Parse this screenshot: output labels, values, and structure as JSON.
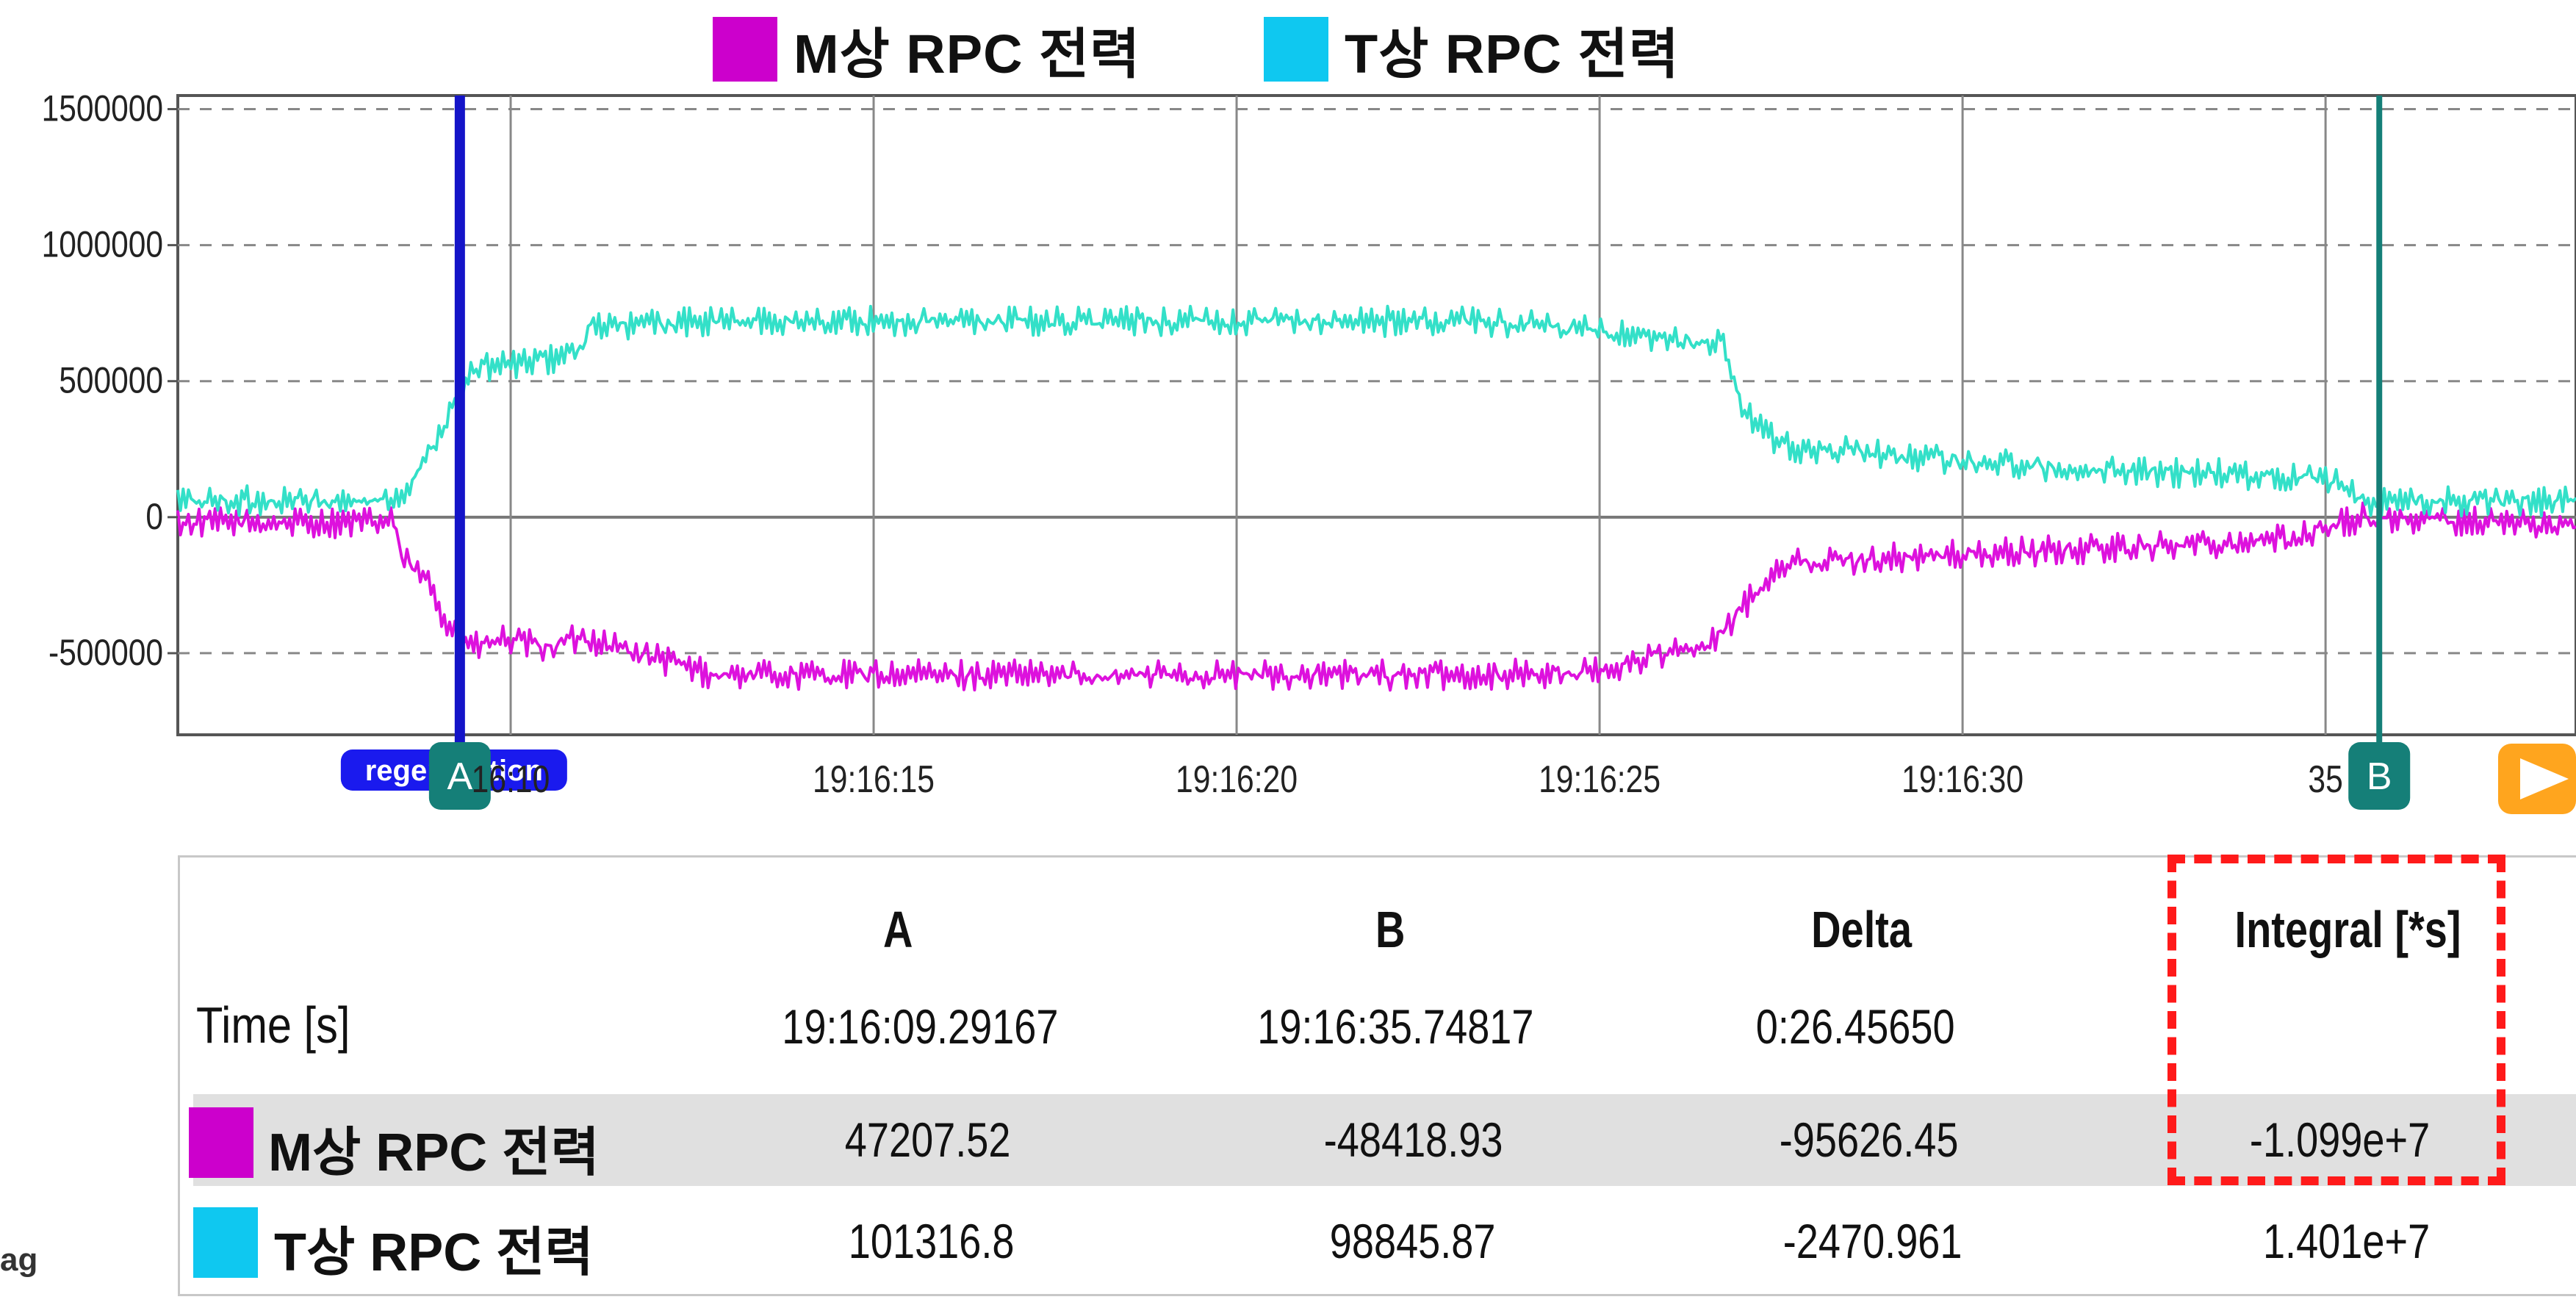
{
  "legend": [
    {
      "label": "M상 RPC 전력",
      "color": "#cc00cc"
    },
    {
      "label": "T상 RPC 전력",
      "color": "#0fc8f0"
    }
  ],
  "chart_data": {
    "type": "line",
    "title": "",
    "xlabel": "",
    "ylabel": "",
    "ylim": [
      -800000,
      1550000
    ],
    "xlim": [
      -0.085,
      32.95
    ],
    "x_unit": "seconds after 19:16:05.5",
    "x_tick_labels": [
      "16:10",
      "19:16:15",
      "19:16:20",
      "19:16:25",
      "19:16:30",
      "35"
    ],
    "x_tick_values_s": [
      4.5,
      9.5,
      14.5,
      19.5,
      24.5,
      29.5
    ],
    "y_ticks": [
      1500000,
      1000000,
      500000,
      0,
      -500000
    ],
    "y_tick_labels": [
      "1500000",
      "1000000",
      "500000",
      "0",
      "-500000"
    ],
    "grid": true,
    "series": [
      {
        "name": "M상 RPC 전력",
        "color": "#dd11dd",
        "x": [
          0,
          2.8,
          2.85,
          3,
          3.4,
          3.6,
          4.0,
          4.4,
          5.0,
          5.5,
          7.3,
          12,
          18,
          19.5,
          20.2,
          21.0,
          21.2,
          21.5,
          22,
          26,
          29,
          29.5,
          30,
          32.95
        ],
        "y": [
          -20000,
          -20000,
          20000,
          -150000,
          -250000,
          -380000,
          -480000,
          -450000,
          -480000,
          -440000,
          -580000,
          -580000,
          -580000,
          -570000,
          -510000,
          -480000,
          -420000,
          -320000,
          -170000,
          -120000,
          -80000,
          -40000,
          0,
          -30000
        ]
      },
      {
        "name": "T상 RPC 전력",
        "color": "#33e0c8",
        "x": [
          0,
          2.8,
          3.0,
          3.5,
          4.0,
          4.5,
          5.0,
          5.5,
          5.6,
          7.3,
          12,
          18,
          19.5,
          20.2,
          21.2,
          21.5,
          22,
          26,
          29,
          29.5,
          30,
          32.95
        ],
        "y": [
          60000,
          60000,
          80000,
          300000,
          550000,
          560000,
          580000,
          620000,
          700000,
          720000,
          720000,
          720000,
          680000,
          650000,
          640000,
          380000,
          260000,
          180000,
          150000,
          150000,
          60000,
          60000
        ]
      }
    ],
    "cursors": [
      {
        "id": "A",
        "x_s": 3.8,
        "color": "#1414c8",
        "tag": "regeneration"
      },
      {
        "id": "B",
        "x_s": 30.24,
        "color": "#157f78"
      }
    ]
  },
  "table": {
    "headers": [
      "A",
      "B",
      "Delta",
      "Integral [*s]"
    ],
    "time_label": "Time [s]",
    "time_values": [
      "19:16:09.29167",
      "19:16:35.74817",
      "0:26.45650"
    ],
    "rows": [
      {
        "label": "M상 RPC 전력",
        "color": "#cc00cc",
        "values": [
          "47207.52",
          "-48418.93",
          "-95626.45",
          "-1.099e+7"
        ]
      },
      {
        "label": "T상 RPC 전력",
        "color": "#0fc8f0",
        "values": [
          "101316.8",
          "98845.87",
          "-2470.961",
          "1.401e+7"
        ]
      }
    ]
  },
  "fragment": "ag"
}
